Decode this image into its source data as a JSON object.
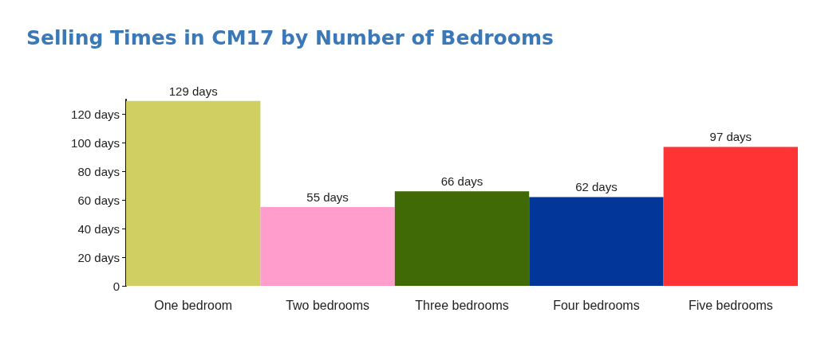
{
  "chart_data": {
    "type": "bar",
    "title": "Selling Times in CM17 by Number of Bedrooms",
    "categories": [
      "One bedroom",
      "Two bedrooms",
      "Three bedrooms",
      "Four bedrooms",
      "Five bedrooms"
    ],
    "values": [
      129,
      55,
      66,
      62,
      97
    ],
    "colors": [
      "#cfcf62",
      "#ff9dcc",
      "#3f6a06",
      "#033699",
      "#ff3333"
    ],
    "value_labels": [
      "129 days",
      "55 days",
      "66 days",
      "62 days",
      "97 days"
    ],
    "ylim": [
      0,
      130
    ],
    "yticks": [
      0,
      {
        "value": 20,
        "label": "20 days"
      },
      {
        "value": 40,
        "label": "40 days"
      },
      {
        "value": 60,
        "label": "60 days"
      },
      {
        "value": 80,
        "label": "80 days"
      },
      {
        "value": 100,
        "label": "100 days"
      },
      {
        "value": 120,
        "label": "120 days"
      }
    ],
    "grid": false
  }
}
